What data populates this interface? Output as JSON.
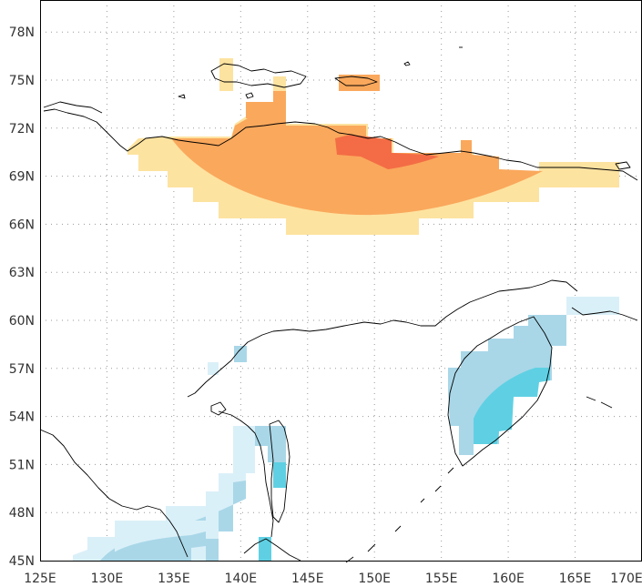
{
  "map": {
    "lon_range": [
      125,
      170
    ],
    "lat_range": [
      45,
      80
    ],
    "x_ticks": [
      {
        "value": 125,
        "label": "125E"
      },
      {
        "value": 130,
        "label": "130E"
      },
      {
        "value": 135,
        "label": "135E"
      },
      {
        "value": 140,
        "label": "140E"
      },
      {
        "value": 145,
        "label": "145E"
      },
      {
        "value": 150,
        "label": "150E"
      },
      {
        "value": 155,
        "label": "155E"
      },
      {
        "value": 160,
        "label": "160E"
      },
      {
        "value": 165,
        "label": "165E"
      },
      {
        "value": 170,
        "label": "170E"
      }
    ],
    "y_ticks": [
      {
        "value": 45,
        "label": "45N"
      },
      {
        "value": 48,
        "label": "48N"
      },
      {
        "value": 51,
        "label": "51N"
      },
      {
        "value": 54,
        "label": "54N"
      },
      {
        "value": 57,
        "label": "57N"
      },
      {
        "value": 60,
        "label": "60N"
      },
      {
        "value": 63,
        "label": "63N"
      },
      {
        "value": 66,
        "label": "66N"
      },
      {
        "value": 69,
        "label": "69N"
      },
      {
        "value": 72,
        "label": "72N"
      },
      {
        "value": 75,
        "label": "75N"
      },
      {
        "value": 78,
        "label": "78N"
      }
    ],
    "grid": true,
    "colors": {
      "warm_light": "#fde3a0",
      "warm_mid": "#faa85c",
      "warm_strong": "#f36c45",
      "cool_pale": "#daf0f8",
      "cool_light": "#a9d7e8",
      "cool_mid": "#5fd0e3",
      "coast": "#000000"
    }
  }
}
